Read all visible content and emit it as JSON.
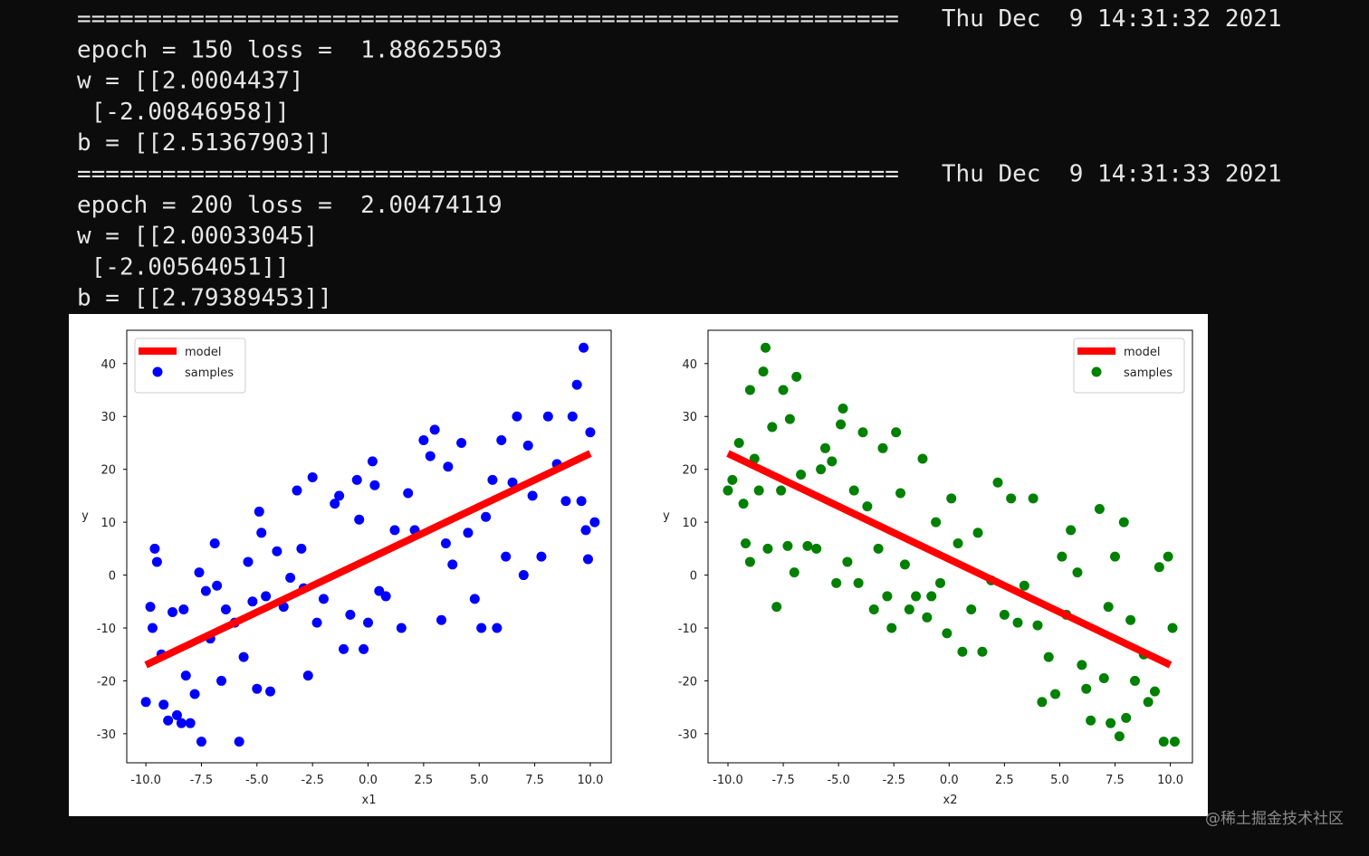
{
  "terminal_lines": [
    "==========================================================   Thu Dec  9 14:31:32 2021",
    "epoch = 150 loss =  1.88625503",
    "w = [[2.0004437]",
    " [-2.00846958]]",
    "b = [[2.51367903]]",
    "==========================================================   Thu Dec  9 14:31:33 2021",
    "epoch = 200 loss =  2.00474119",
    "w = [[2.00033045]",
    " [-2.00564051]]",
    "b = [[2.79389453]]"
  ],
  "watermark": "@稀土掘金技术社区",
  "chart_data": [
    {
      "type": "scatter",
      "x_label": "x1",
      "y_label": "y",
      "legend": "upper left",
      "xlim": [
        -10.86,
        10.94
      ],
      "ylim": [
        -35.5,
        46.3
      ],
      "xticks": [
        {
          "value": -10,
          "label": "-10.0"
        },
        -7.5,
        {
          "value": -5,
          "label": "-5.0"
        },
        -2.5,
        {
          "value": 0,
          "label": "0.0"
        },
        2.5,
        {
          "value": 5,
          "label": "5.0"
        },
        7.5,
        {
          "value": 10,
          "label": "10.0"
        }
      ],
      "yticks": [
        -30,
        -20,
        -10,
        0,
        10,
        20,
        30,
        40
      ],
      "series": [
        {
          "name": "model",
          "kind": "line",
          "color": "#ff0000",
          "x": [
            -10,
            10
          ],
          "values": [
            -17,
            23
          ]
        },
        {
          "name": "samples",
          "kind": "scatter",
          "color": "#0000ff",
          "x": [
            -10,
            -9.8,
            -9.6,
            -9.5,
            -9.7,
            -9.3,
            -9.2,
            -9,
            -8.8,
            -8.6,
            -8.4,
            -8.3,
            -8.2,
            -8,
            -7.8,
            -7.6,
            -7.5,
            -7.3,
            -7.1,
            -6.9,
            -6.8,
            -6.6,
            -6.4,
            -6,
            -5.8,
            -5.6,
            -5.4,
            -5.2,
            -5,
            -4.9,
            -4.8,
            -4.6,
            -4.4,
            -4.1,
            -3.8,
            -3.5,
            -3.2,
            -3,
            -2.9,
            -2.7,
            -2.5,
            -2.3,
            -2,
            -1.5,
            -1.3,
            -1.1,
            -0.8,
            -0.5,
            -0.4,
            -0.2,
            0,
            0.2,
            0.3,
            0.5,
            0.8,
            1.2,
            1.5,
            1.8,
            2.1,
            2.5,
            2.8,
            3,
            3.3,
            3.5,
            3.6,
            3.8,
            4.2,
            4.5,
            4.8,
            5.1,
            5.3,
            5.6,
            5.8,
            6,
            6.2,
            6.5,
            6.7,
            7,
            7.2,
            7.4,
            7.8,
            8.1,
            8.5,
            8.9,
            9.2,
            9.4,
            9.6,
            9.7,
            9.8,
            9.9,
            10,
            10.2
          ],
          "values": [
            -24,
            -6,
            5,
            2.5,
            -10,
            -15,
            -24.5,
            -27.5,
            -7,
            -26.5,
            -28,
            -6.5,
            -19,
            -28,
            -22.5,
            0.5,
            -31.5,
            -3,
            -12,
            6,
            -2,
            -20,
            -6.5,
            -9,
            -31.5,
            -15.5,
            2.5,
            -5,
            -21.5,
            12,
            8,
            -4,
            -22,
            4.5,
            -6,
            -0.5,
            16,
            5,
            -2.5,
            -19,
            18.5,
            -9,
            -4.5,
            13.5,
            15,
            -14,
            -7.5,
            18,
            10.5,
            -14,
            -9,
            21.5,
            17,
            -3,
            -4,
            8.5,
            -10,
            15.5,
            8.5,
            25.5,
            22.5,
            27.5,
            -8.5,
            6,
            20.5,
            2,
            25,
            8,
            -4.5,
            -10,
            11,
            18,
            -10,
            25.5,
            3.5,
            17.5,
            30,
            0,
            24.5,
            15,
            3.5,
            30,
            21,
            14,
            30,
            36,
            14,
            43,
            8.5,
            3,
            27,
            10
          ]
        }
      ]
    },
    {
      "type": "scatter",
      "x_label": "x2",
      "y_label": "y",
      "legend": "upper right",
      "xlim": [
        -10.9,
        11.0
      ],
      "ylim": [
        -35.5,
        46.3
      ],
      "xticks": [
        {
          "value": -10,
          "label": "-10.0"
        },
        -7.5,
        {
          "value": -5,
          "label": "-5.0"
        },
        -2.5,
        {
          "value": 0,
          "label": "0.0"
        },
        2.5,
        {
          "value": 5,
          "label": "5.0"
        },
        7.5,
        {
          "value": 10,
          "label": "10.0"
        }
      ],
      "yticks": [
        -30,
        -20,
        -10,
        0,
        10,
        20,
        30,
        40
      ],
      "series": [
        {
          "name": "model",
          "kind": "line",
          "color": "#ff0000",
          "x": [
            -10,
            10
          ],
          "values": [
            23,
            -17
          ]
        },
        {
          "name": "samples",
          "kind": "scatter",
          "color": "#008000",
          "x": [
            -10,
            -9.8,
            -9.5,
            -9.3,
            -9.2,
            -9,
            -9,
            -8.8,
            -8.6,
            -8.4,
            -8.3,
            -8.2,
            -8,
            -7.8,
            -7.6,
            -7.5,
            -7.3,
            -7.2,
            -7,
            -6.9,
            -6.7,
            -6.4,
            -6,
            -5.8,
            -5.6,
            -5.3,
            -5.1,
            -4.9,
            -4.8,
            -4.6,
            -4.3,
            -4.1,
            -3.9,
            -3.7,
            -3.4,
            -3.2,
            -3,
            -2.8,
            -2.6,
            -2.4,
            -2.2,
            -2,
            -1.8,
            -1.5,
            -1.2,
            -1,
            -0.8,
            -0.6,
            -0.4,
            -0.1,
            0.1,
            0.4,
            0.6,
            1,
            1.3,
            1.5,
            1.9,
            2.2,
            2.5,
            2.8,
            3.1,
            3.4,
            3.8,
            4,
            4.2,
            4.5,
            4.8,
            5.1,
            5.3,
            5.5,
            5.8,
            6,
            6.2,
            6.4,
            6.8,
            7,
            7.2,
            7.3,
            7.5,
            7.7,
            7.9,
            8,
            8.2,
            8.4,
            8.8,
            9,
            9.3,
            9.5,
            9.7,
            9.9,
            10.1,
            10.2
          ],
          "values": [
            16,
            18,
            25,
            13.5,
            6,
            2.5,
            35,
            22,
            16,
            38.5,
            43,
            5,
            28,
            -6,
            16,
            35,
            5.5,
            29.5,
            0.5,
            37.5,
            19,
            5.5,
            5,
            20,
            24,
            21.5,
            -1.5,
            28.5,
            31.5,
            2.5,
            16,
            -1.5,
            27,
            13,
            -6.5,
            5,
            24,
            -4,
            -10,
            27,
            15.5,
            2,
            -6.5,
            -4,
            22,
            -8,
            -4,
            10,
            -1.5,
            -11,
            14.5,
            6,
            -14.5,
            -6.5,
            8,
            -14.5,
            -1,
            17.5,
            -7.5,
            14.5,
            -9,
            -2,
            14.5,
            -9.5,
            -24,
            -15.5,
            -22.5,
            3.5,
            -7.5,
            8.5,
            0.5,
            -17,
            -21.5,
            -27.5,
            12.5,
            -19.5,
            -6,
            -28,
            3.5,
            -30.5,
            10,
            -27,
            -8.5,
            -20,
            -15,
            -24,
            -22,
            1.5,
            -31.5,
            3.5,
            -10,
            -31.5
          ]
        }
      ]
    }
  ]
}
